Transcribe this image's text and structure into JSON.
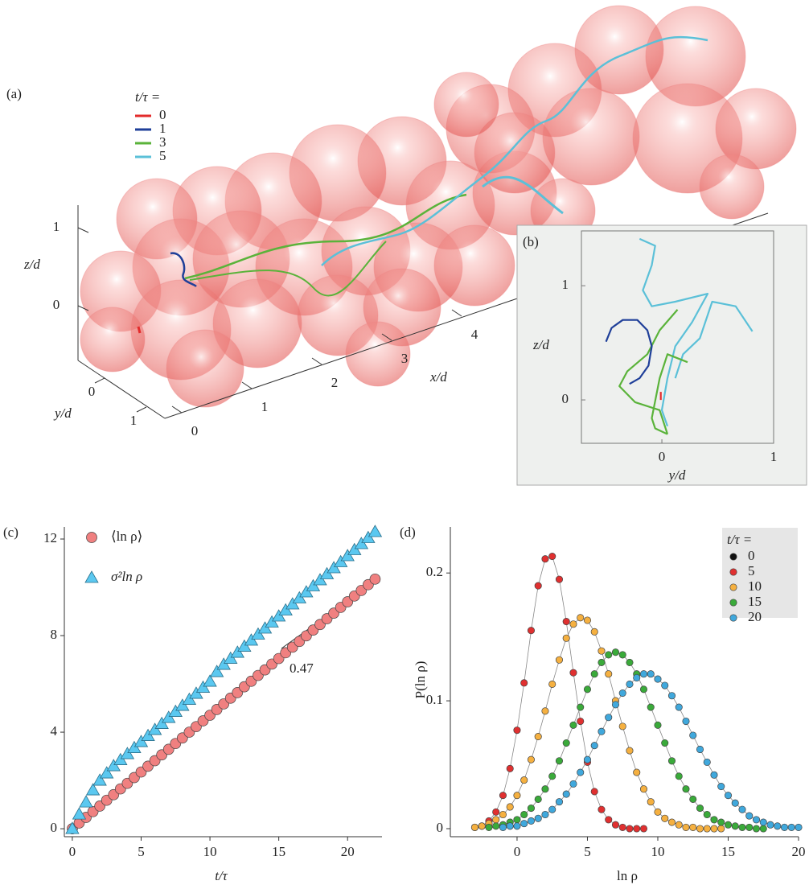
{
  "chart_data": [
    {
      "type": "scene3d",
      "panel": "(a)",
      "legend_title": "t/τ =",
      "series": [
        {
          "name": "0",
          "color": "#e32b2b"
        },
        {
          "name": "1",
          "color": "#1f3f99"
        },
        {
          "name": "3",
          "color": "#5ab33a"
        },
        {
          "name": "5",
          "color": "#5bc0d8"
        }
      ],
      "xlabel": "x/d",
      "ylabel": "y/d",
      "zlabel": "z/d",
      "xticks": [
        0,
        1,
        2,
        3,
        4
      ],
      "yticks": [
        0,
        1
      ],
      "zticks": [
        0,
        1
      ]
    },
    {
      "type": "trajectory",
      "panel": "(b)",
      "xlabel": "y/d",
      "ylabel": "z/d",
      "xlim": [
        -0.72,
        1
      ],
      "ylim": [
        -0.38,
        1.48
      ],
      "xticks": [
        0,
        1
      ],
      "yticks": [
        0,
        1
      ],
      "series": [
        {
          "color": "#5bc0d8",
          "x": [
            -0.2,
            -0.06,
            -0.09,
            -0.17,
            -0.09,
            0.12,
            0.41,
            0.27,
            0.12,
            0.05,
            0,
            0.05
          ],
          "values": [
            1.41,
            1.35,
            1.18,
            0.96,
            0.82,
            0.86,
            0.93,
            0.68,
            0.47,
            0.19,
            -0.09,
            -0.23
          ]
        },
        {
          "color": "#5bc0d8",
          "x": [
            0.81,
            0.66,
            0.45,
            0.34,
            0.19,
            0.12
          ],
          "values": [
            0.6,
            0.82,
            0.86,
            0.54,
            0.4,
            0.19
          ]
        },
        {
          "color": "#5ab33a",
          "x": [
            0.14,
            -0.02,
            -0.13,
            -0.31,
            -0.38,
            -0.24,
            -0.02,
            0.05
          ],
          "values": [
            0.79,
            0.61,
            0.4,
            0.25,
            0.12,
            -0.02,
            -0.09,
            -0.3
          ]
        },
        {
          "color": "#5ab33a",
          "x": [
            0.23,
            0.05,
            -0.02,
            -0.09,
            -0.06,
            0.05
          ],
          "values": [
            0.33,
            0.4,
            0.19,
            -0.16,
            -0.25,
            -0.3
          ]
        },
        {
          "color": "#1f3f99",
          "x": [
            -0.5,
            -0.45,
            -0.35,
            -0.22,
            -0.13,
            -0.09,
            -0.12,
            -0.2,
            -0.29
          ],
          "values": [
            0.51,
            0.63,
            0.7,
            0.7,
            0.61,
            0.47,
            0.3,
            0.19,
            0.14
          ]
        },
        {
          "color": "#e32b2b",
          "x": [
            -0.01,
            -0.01
          ],
          "values": [
            0.0,
            0.07
          ]
        }
      ]
    },
    {
      "type": "scatter",
      "panel": "(c)",
      "xlabel": "t/τ",
      "annotation": "0.47",
      "xlim": [
        -0.58,
        22.5
      ],
      "ylim": [
        -0.33,
        12.5
      ],
      "xticks": [
        0,
        5,
        10,
        15,
        20
      ],
      "yticks": [
        0,
        4,
        8,
        12
      ],
      "x": [
        0,
        0.5,
        1,
        1.5,
        2,
        2.5,
        3,
        3.5,
        4,
        4.5,
        5,
        5.5,
        6,
        6.5,
        7,
        7.5,
        8,
        8.5,
        9,
        9.5,
        10,
        10.5,
        11,
        11.5,
        12,
        12.5,
        13,
        13.5,
        14,
        14.5,
        15,
        15.5,
        16,
        16.5,
        17,
        17.5,
        18,
        18.5,
        19,
        19.5,
        20,
        20.5,
        21,
        21.5,
        22
      ],
      "series": [
        {
          "name": "⟨ln ρ⟩",
          "marker": "circle",
          "color": "#f08080",
          "values": [
            0,
            0.24,
            0.47,
            0.71,
            0.94,
            1.18,
            1.41,
            1.65,
            1.88,
            2.12,
            2.35,
            2.59,
            2.82,
            3.06,
            3.29,
            3.53,
            3.76,
            4.0,
            4.23,
            4.47,
            4.7,
            4.94,
            5.17,
            5.41,
            5.64,
            5.88,
            6.11,
            6.35,
            6.58,
            6.82,
            7.05,
            7.29,
            7.52,
            7.76,
            7.99,
            8.23,
            8.46,
            8.7,
            8.93,
            9.17,
            9.4,
            9.64,
            9.87,
            10.11,
            10.34
          ]
        },
        {
          "name": "σ²ln ρ",
          "marker": "triangle",
          "color": "#5bc8f0",
          "values": [
            0,
            0.6,
            1.1,
            1.6,
            2.0,
            2.3,
            2.6,
            2.85,
            3.1,
            3.35,
            3.6,
            3.85,
            4.1,
            4.35,
            4.6,
            4.85,
            5.1,
            5.35,
            5.6,
            5.85,
            6.1,
            6.5,
            6.8,
            7.05,
            7.3,
            7.55,
            7.8,
            8.05,
            8.3,
            8.55,
            8.8,
            9.05,
            9.3,
            9.55,
            9.8,
            10.05,
            10.3,
            10.55,
            10.8,
            11.05,
            11.3,
            11.55,
            11.8,
            12.05,
            12.3
          ]
        }
      ]
    },
    {
      "type": "scatter",
      "panel": "(d)",
      "xlabel": "ln ρ",
      "ylabel": "P(ln ρ)",
      "legend_title": "t/τ =",
      "xlim": [
        -4.74,
        20
      ],
      "ylim": [
        -0.0063,
        0.236
      ],
      "xticks": [
        0,
        5,
        10,
        15,
        20
      ],
      "yticks": [
        0,
        0.1,
        0.2
      ],
      "series": [
        {
          "name": "0",
          "color": "#111111",
          "x": [],
          "values": []
        },
        {
          "name": "5",
          "color": "#e03030",
          "x": [
            -3,
            -2.5,
            -2,
            -1.5,
            -1,
            -0.5,
            0,
            0.5,
            1,
            1.5,
            2,
            2.5,
            3,
            3.5,
            4,
            4.5,
            5,
            5.5,
            6,
            6.5,
            7,
            7.5,
            8,
            8.5,
            9
          ],
          "values": [
            0.001,
            0.002,
            0.006,
            0.013,
            0.026,
            0.047,
            0.077,
            0.114,
            0.155,
            0.19,
            0.211,
            0.213,
            0.195,
            0.162,
            0.122,
            0.084,
            0.052,
            0.029,
            0.015,
            0.007,
            0.003,
            0.001,
            0,
            0,
            0
          ]
        },
        {
          "name": "10",
          "color": "#f5b040",
          "x": [
            -3,
            -2.5,
            -2,
            -1.5,
            -1,
            -0.5,
            0,
            0.5,
            1,
            1.5,
            2,
            2.5,
            3,
            3.5,
            4,
            4.5,
            5,
            5.5,
            6,
            6.5,
            7,
            7.5,
            8,
            8.5,
            9,
            9.5,
            10,
            10.5,
            11,
            11.5,
            12,
            12.5,
            13,
            13.5,
            14,
            14.5
          ],
          "values": [
            0.001,
            0.002,
            0.004,
            0.007,
            0.011,
            0.017,
            0.026,
            0.038,
            0.054,
            0.072,
            0.092,
            0.113,
            0.132,
            0.149,
            0.16,
            0.165,
            0.163,
            0.154,
            0.139,
            0.121,
            0.1,
            0.08,
            0.061,
            0.044,
            0.031,
            0.021,
            0.013,
            0.008,
            0.005,
            0.003,
            0.001,
            0.001,
            0,
            0,
            0,
            0
          ]
        },
        {
          "name": "15",
          "color": "#3aaa3a",
          "x": [
            -2,
            -1.5,
            -1,
            -0.5,
            0,
            0.5,
            1,
            1.5,
            2,
            2.5,
            3,
            3.5,
            4,
            4.5,
            5,
            5.5,
            6,
            6.5,
            7,
            7.5,
            8,
            8.5,
            9,
            9.5,
            10,
            10.5,
            11,
            11.5,
            12,
            12.5,
            13,
            13.5,
            14,
            14.5,
            15,
            15.5,
            16,
            16.5,
            17,
            17.5
          ],
          "values": [
            0.001,
            0.002,
            0.003,
            0.005,
            0.007,
            0.011,
            0.016,
            0.023,
            0.031,
            0.041,
            0.053,
            0.067,
            0.081,
            0.095,
            0.109,
            0.121,
            0.13,
            0.136,
            0.138,
            0.136,
            0.13,
            0.121,
            0.109,
            0.095,
            0.081,
            0.067,
            0.053,
            0.041,
            0.031,
            0.023,
            0.016,
            0.011,
            0.007,
            0.005,
            0.003,
            0.002,
            0.001,
            0.001,
            0,
            0
          ]
        },
        {
          "name": "20",
          "color": "#40a8dc",
          "x": [
            -1,
            -0.5,
            0,
            0.5,
            1,
            1.5,
            2,
            2.5,
            3,
            3.5,
            4,
            4.5,
            5,
            5.5,
            6,
            6.5,
            7,
            7.5,
            8,
            8.5,
            9,
            9.5,
            10,
            10.5,
            11,
            11.5,
            12,
            12.5,
            13,
            13.5,
            14,
            14.5,
            15,
            15.5,
            16,
            16.5,
            17,
            17.5,
            18,
            18.5,
            19,
            19.5,
            20
          ],
          "values": [
            0.001,
            0.002,
            0.002,
            0.004,
            0.006,
            0.008,
            0.011,
            0.015,
            0.021,
            0.027,
            0.035,
            0.044,
            0.054,
            0.065,
            0.076,
            0.087,
            0.097,
            0.106,
            0.113,
            0.118,
            0.121,
            0.121,
            0.117,
            0.112,
            0.104,
            0.095,
            0.084,
            0.073,
            0.062,
            0.052,
            0.042,
            0.033,
            0.026,
            0.02,
            0.015,
            0.01,
            0.007,
            0.005,
            0.003,
            0.002,
            0.001,
            0.001,
            0.001
          ]
        }
      ]
    }
  ]
}
